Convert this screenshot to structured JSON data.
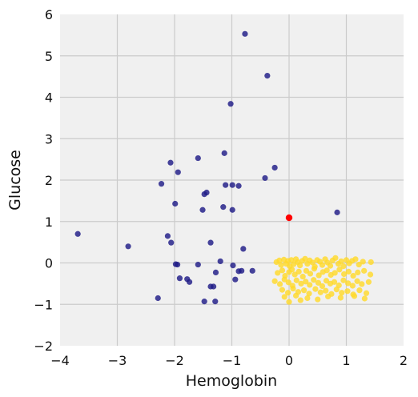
{
  "chart_data": {
    "type": "scatter",
    "xlabel": "Hemoglobin",
    "ylabel": "Glucose",
    "xlim": [
      -4,
      2
    ],
    "ylim": [
      -2,
      6
    ],
    "xticks": [
      -4,
      -3,
      -2,
      -1,
      0,
      1,
      2
    ],
    "yticks": [
      -2,
      -1,
      0,
      1,
      2,
      3,
      4,
      5,
      6
    ],
    "grid": true,
    "colors": {
      "background": "#f0f0f0",
      "grid": "#cbcbcb",
      "series_a": "#1f1b86",
      "series_b": "#ffd92b",
      "highlight": "#ff0000"
    },
    "series": [
      {
        "color": "#1f1b86",
        "points": [
          [
            -0.77,
            5.53
          ],
          [
            -0.38,
            4.52
          ],
          [
            -1.02,
            3.84
          ],
          [
            -1.13,
            2.65
          ],
          [
            -1.59,
            2.53
          ],
          [
            -2.07,
            2.42
          ],
          [
            -1.94,
            2.19
          ],
          [
            -0.25,
            2.3
          ],
          [
            -0.42,
            2.05
          ],
          [
            -2.23,
            1.91
          ],
          [
            -1.11,
            1.88
          ],
          [
            -0.99,
            1.88
          ],
          [
            -0.88,
            1.86
          ],
          [
            -1.44,
            1.7
          ],
          [
            -1.48,
            1.66
          ],
          [
            -1.99,
            1.43
          ],
          [
            -1.51,
            1.28
          ],
          [
            -1.15,
            1.35
          ],
          [
            -0.99,
            1.28
          ],
          [
            0.84,
            1.22
          ],
          [
            -3.69,
            0.7
          ],
          [
            -2.12,
            0.65
          ],
          [
            -2.06,
            0.49
          ],
          [
            -1.37,
            0.49
          ],
          [
            -2.81,
            0.4
          ],
          [
            -0.8,
            0.34
          ],
          [
            -1.2,
            0.04
          ],
          [
            -1.98,
            -0.03
          ],
          [
            -1.95,
            -0.04
          ],
          [
            -1.59,
            -0.04
          ],
          [
            -0.98,
            -0.06
          ],
          [
            -0.64,
            -0.19
          ],
          [
            -0.88,
            -0.2
          ],
          [
            -0.83,
            -0.19
          ],
          [
            -1.28,
            -0.23
          ],
          [
            -1.91,
            -0.37
          ],
          [
            -1.78,
            -0.39
          ],
          [
            -1.74,
            -0.46
          ],
          [
            -0.94,
            -0.4
          ],
          [
            -1.37,
            -0.57
          ],
          [
            -1.32,
            -0.57
          ],
          [
            -2.29,
            -0.85
          ],
          [
            -1.48,
            -0.93
          ],
          [
            -1.29,
            -0.93
          ]
        ]
      },
      {
        "color": "#ffd92b",
        "points": [
          [
            -0.22,
            0.02
          ],
          [
            -0.17,
            0.06
          ],
          [
            -0.14,
            -0.05
          ],
          [
            -0.09,
            0.08
          ],
          [
            -0.05,
            -0.02
          ],
          [
            -0.02,
            0.05
          ],
          [
            0.01,
            -0.08
          ],
          [
            0.04,
            0.07
          ],
          [
            0.08,
            -0.03
          ],
          [
            0.12,
            0.09
          ],
          [
            0.15,
            0.02
          ],
          [
            0.19,
            -0.06
          ],
          [
            0.23,
            0.05
          ],
          [
            0.28,
            0.1
          ],
          [
            0.32,
            -0.02
          ],
          [
            0.36,
            0.06
          ],
          [
            0.41,
            0.01
          ],
          [
            0.45,
            -0.09
          ],
          [
            0.49,
            0.07
          ],
          [
            0.54,
            0.03
          ],
          [
            0.58,
            -0.05
          ],
          [
            0.63,
            0.09
          ],
          [
            0.67,
            0.01
          ],
          [
            0.72,
            -0.07
          ],
          [
            0.76,
            0.06
          ],
          [
            0.81,
            0.12
          ],
          [
            0.86,
            -0.02
          ],
          [
            0.91,
            0.04
          ],
          [
            0.95,
            -0.08
          ],
          [
            1.0,
            0.07
          ],
          [
            1.05,
            -0.01
          ],
          [
            1.1,
            0.05
          ],
          [
            1.16,
            0.09
          ],
          [
            1.22,
            -0.04
          ],
          [
            1.29,
            0.03
          ],
          [
            1.43,
            0.02
          ],
          [
            -0.2,
            -0.24
          ],
          [
            -0.12,
            -0.18
          ],
          [
            -0.07,
            -0.31
          ],
          [
            0.0,
            -0.22
          ],
          [
            0.05,
            -0.16
          ],
          [
            0.1,
            -0.28
          ],
          [
            0.17,
            -0.21
          ],
          [
            0.24,
            -0.33
          ],
          [
            0.3,
            -0.19
          ],
          [
            0.37,
            -0.26
          ],
          [
            0.44,
            -0.14
          ],
          [
            0.52,
            -0.3
          ],
          [
            0.59,
            -0.22
          ],
          [
            0.66,
            -0.18
          ],
          [
            0.73,
            -0.29
          ],
          [
            0.8,
            -0.24
          ],
          [
            0.88,
            -0.16
          ],
          [
            0.96,
            -0.27
          ],
          [
            1.04,
            -0.21
          ],
          [
            1.12,
            -0.31
          ],
          [
            1.2,
            -0.23
          ],
          [
            1.31,
            -0.19
          ],
          [
            1.42,
            -0.28
          ],
          [
            -0.25,
            -0.44
          ],
          [
            -0.16,
            -0.51
          ],
          [
            -0.08,
            -0.4
          ],
          [
            -0.01,
            -0.47
          ],
          [
            0.06,
            -0.55
          ],
          [
            0.13,
            -0.42
          ],
          [
            0.21,
            -0.5
          ],
          [
            0.29,
            -0.45
          ],
          [
            0.36,
            -0.53
          ],
          [
            0.43,
            -0.41
          ],
          [
            0.51,
            -0.48
          ],
          [
            0.58,
            -0.56
          ],
          [
            0.65,
            -0.43
          ],
          [
            0.72,
            -0.5
          ],
          [
            0.79,
            -0.46
          ],
          [
            0.87,
            -0.54
          ],
          [
            0.95,
            -0.42
          ],
          [
            1.03,
            -0.49
          ],
          [
            1.11,
            -0.55
          ],
          [
            1.19,
            -0.44
          ],
          [
            1.27,
            -0.51
          ],
          [
            1.39,
            -0.46
          ],
          [
            -0.12,
            -0.65
          ],
          [
            -0.02,
            -0.72
          ],
          [
            0.07,
            -0.62
          ],
          [
            0.16,
            -0.7
          ],
          [
            0.26,
            -0.66
          ],
          [
            0.35,
            -0.74
          ],
          [
            0.46,
            -0.63
          ],
          [
            0.55,
            -0.71
          ],
          [
            0.64,
            -0.67
          ],
          [
            0.74,
            -0.75
          ],
          [
            0.83,
            -0.64
          ],
          [
            0.92,
            -0.72
          ],
          [
            1.02,
            -0.68
          ],
          [
            1.12,
            -0.76
          ],
          [
            1.23,
            -0.66
          ],
          [
            1.35,
            -0.73
          ],
          [
            -0.08,
            -0.82
          ],
          [
            0.12,
            -0.79
          ],
          [
            0.32,
            -0.85
          ],
          [
            0.5,
            -0.88
          ],
          [
            0.68,
            -0.81
          ],
          [
            0.9,
            -0.84
          ],
          [
            1.14,
            -0.8
          ],
          [
            1.32,
            -0.86
          ],
          [
            0.0,
            -0.94
          ],
          [
            0.2,
            -0.9
          ]
        ]
      },
      {
        "color": "#ff0000",
        "points": [
          [
            0.0,
            1.09
          ]
        ]
      }
    ]
  }
}
